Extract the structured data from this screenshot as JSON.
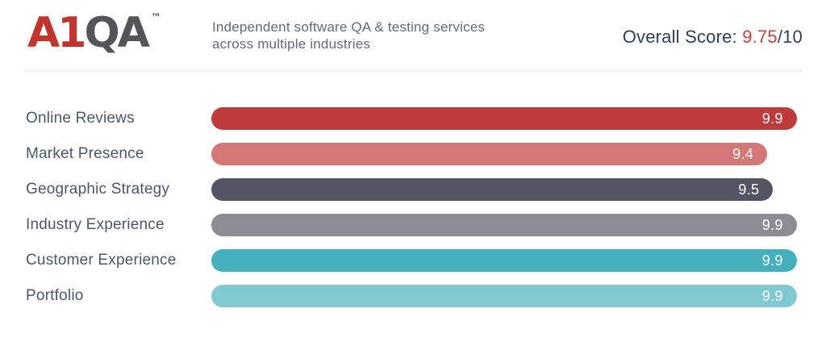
{
  "header": {
    "logo": {
      "part1": "A1",
      "part2": "QA",
      "trademark": "TM"
    },
    "tagline_line1": "Independent software QA & testing services",
    "tagline_line2": "across multiple industries",
    "overall_score": {
      "label": "Overall Score: ",
      "value": "9.75",
      "suffix": "/10"
    }
  },
  "chart_data": {
    "type": "bar",
    "orientation": "horizontal",
    "title": "",
    "xlabel": "",
    "ylabel": "",
    "categories": [
      "Online Reviews",
      "Market Presence",
      "Geographic Strategy",
      "Industry Experience",
      "Customer Experience",
      "Portfolio"
    ],
    "values": [
      9.9,
      9.4,
      9.5,
      9.9,
      9.9,
      9.9
    ],
    "max": 10,
    "xlim": [
      0,
      10
    ],
    "grid": false,
    "legend": false,
    "bar_colors": [
      "#be3a3b",
      "#d37877",
      "#545564",
      "#8c8c95",
      "#44b0bc",
      "#7fc9d1"
    ],
    "value_label_color": "#ffffff"
  },
  "colors": {
    "logo_red": "#c2342e",
    "logo_gray": "#545559",
    "accent_red": "#c5403e",
    "heading_navy": "#2f3e56",
    "label_slate": "#4a576b",
    "tagline_gray": "#5f6b7a",
    "divider": "#f0f0f0",
    "background": "#ffffff"
  }
}
